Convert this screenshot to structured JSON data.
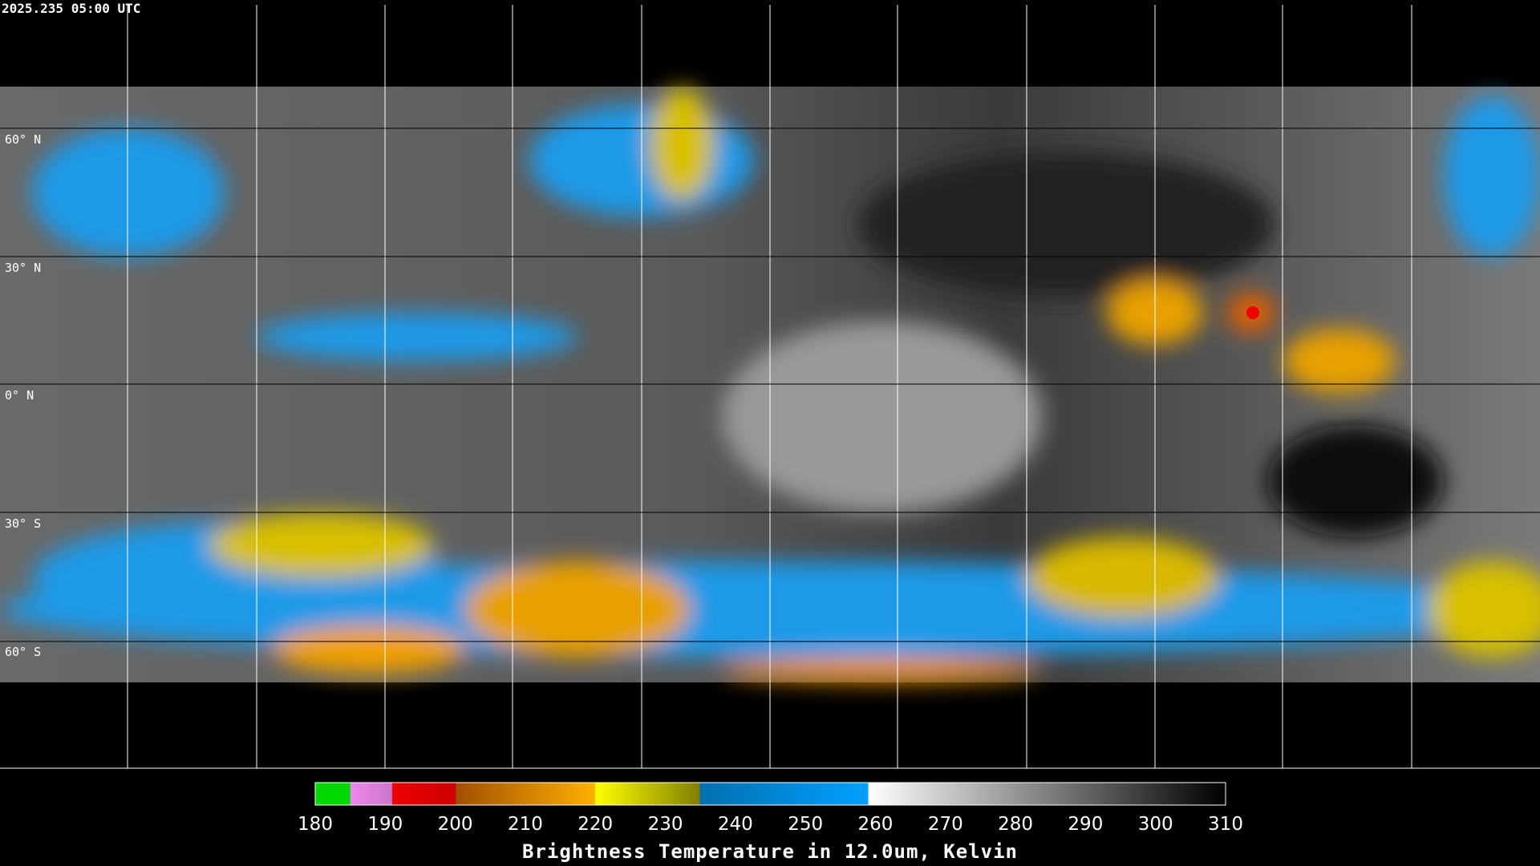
{
  "header": {
    "timestamp": "2025.235 05:00 UTC"
  },
  "latitude_labels": [
    "60° N",
    "30° N",
    "0° N",
    "30° S",
    "60° S"
  ],
  "colorbar": {
    "ticks": [
      "180",
      "190",
      "200",
      "210",
      "220",
      "230",
      "240",
      "250",
      "260",
      "270",
      "280",
      "290",
      "300",
      "310"
    ],
    "title": "Brightness Temperature in 12.0um, Kelvin"
  }
}
